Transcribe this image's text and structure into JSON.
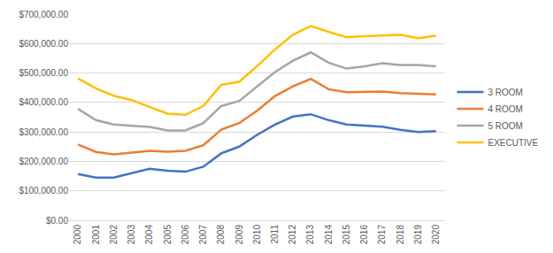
{
  "chart_data": {
    "type": "line",
    "categories": [
      "2000",
      "2001",
      "2002",
      "2003",
      "2004",
      "2005",
      "2006",
      "2007",
      "2008",
      "2009",
      "2010",
      "2011",
      "2012",
      "2013",
      "2014",
      "2015",
      "2016",
      "2017",
      "2018",
      "2019",
      "2020"
    ],
    "series": [
      {
        "name": "3 ROOM",
        "color": "#4472c4",
        "values": [
          157000,
          145000,
          145000,
          160000,
          175000,
          168000,
          165000,
          182000,
          227000,
          250000,
          290000,
          325000,
          352000,
          360000,
          340000,
          325000,
          322000,
          318000,
          307000,
          300000,
          303000
        ]
      },
      {
        "name": "4 ROOM",
        "color": "#ed7d31",
        "values": [
          257000,
          232000,
          224000,
          230000,
          236000,
          233000,
          236000,
          255000,
          308000,
          330000,
          372000,
          422000,
          455000,
          480000,
          445000,
          435000,
          435000,
          437000,
          432000,
          430000,
          427000
        ]
      },
      {
        "name": "5 ROOM",
        "color": "#a5a5a5",
        "values": [
          378000,
          340000,
          325000,
          322000,
          317000,
          305000,
          305000,
          330000,
          388000,
          405000,
          455000,
          503000,
          542000,
          570000,
          535000,
          515000,
          523000,
          533000,
          527000,
          527000,
          523000
        ]
      },
      {
        "name": "EXECUTIVE",
        "color": "#ffc000",
        "values": [
          482000,
          448000,
          423000,
          408000,
          385000,
          362000,
          358000,
          388000,
          460000,
          470000,
          523000,
          580000,
          630000,
          660000,
          640000,
          622000,
          625000,
          628000,
          630000,
          618000,
          627000
        ]
      }
    ],
    "ylim": [
      0,
      700000
    ],
    "yticks": [
      {
        "value": 0,
        "label": "$0.00"
      },
      {
        "value": 100000,
        "label": "$100,000.00"
      },
      {
        "value": 200000,
        "label": "$200,000.00"
      },
      {
        "value": 300000,
        "label": "$300,000.00"
      },
      {
        "value": 400000,
        "label": "$400,000.00"
      },
      {
        "value": 500000,
        "label": "$500,000.00"
      },
      {
        "value": 600000,
        "label": "$600,000.00"
      },
      {
        "value": 700000,
        "label": "$700,000.00"
      }
    ],
    "grid": true,
    "legend": "right"
  }
}
